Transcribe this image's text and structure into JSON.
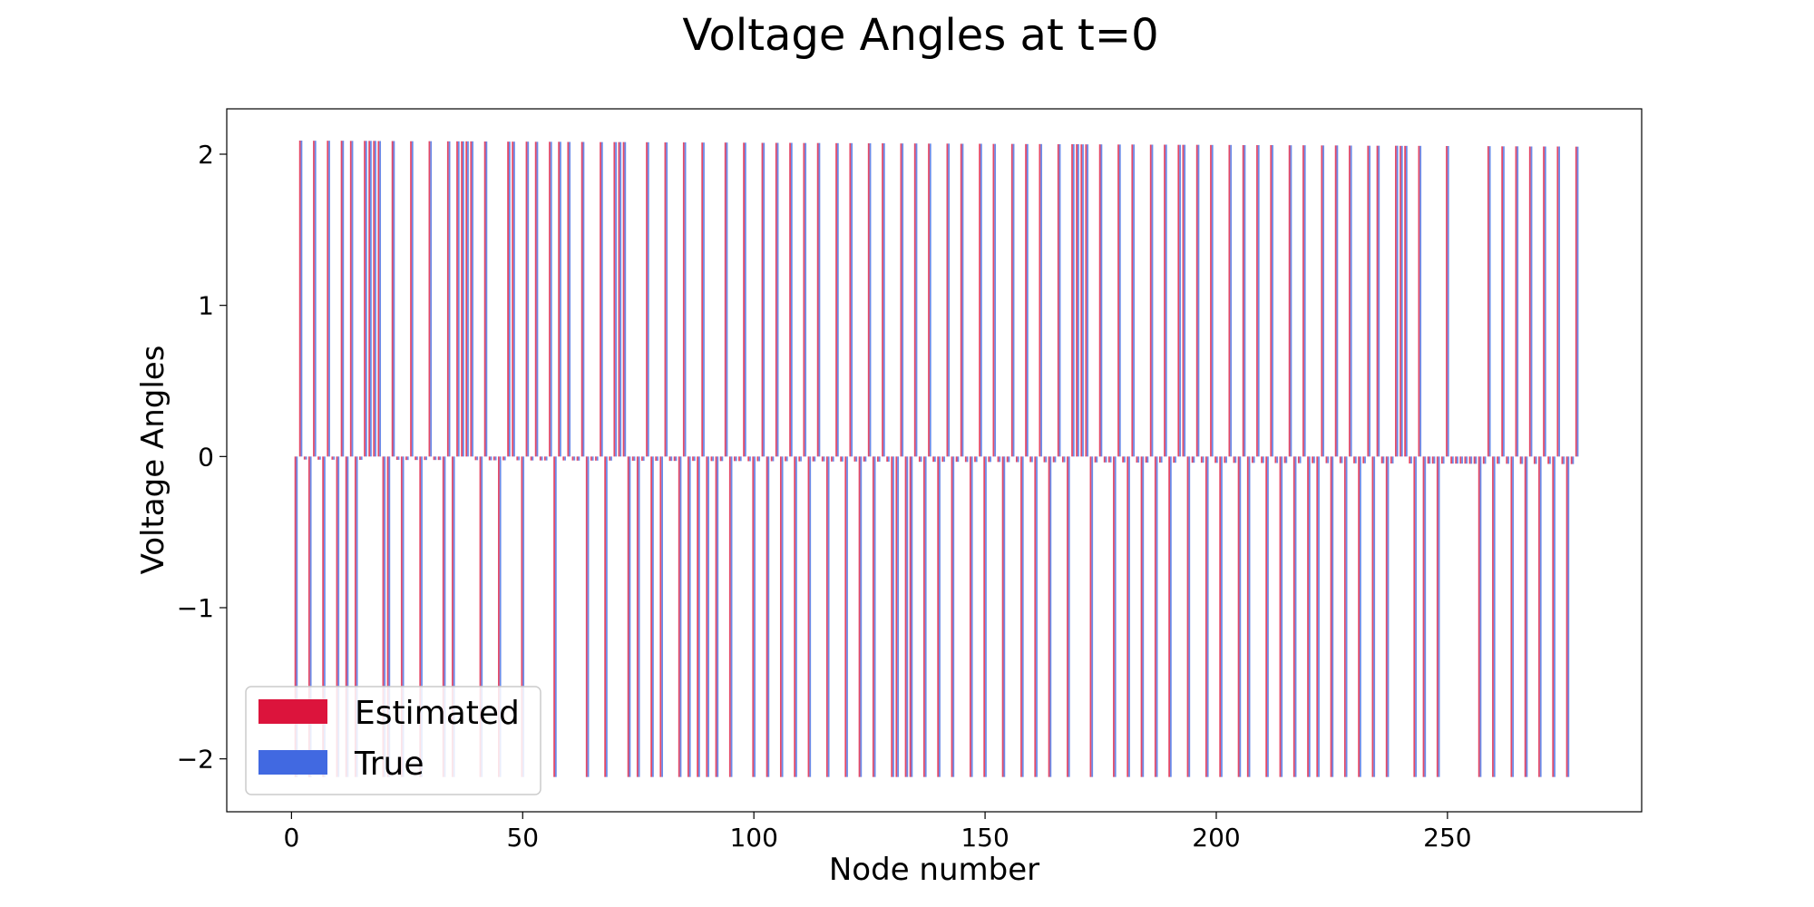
{
  "chart_data": {
    "type": "bar",
    "title": "Voltage Angles at t=0",
    "xlabel": "Node number",
    "ylabel": "Voltage Angles",
    "xlim": [
      -14,
      292
    ],
    "ylim": [
      -2.35,
      2.3
    ],
    "xticks": [
      0,
      50,
      100,
      150,
      200,
      250
    ],
    "yticks": [
      -2,
      -1,
      0,
      1,
      2
    ],
    "ytick_labels": [
      "−2",
      "−1",
      "0",
      "1",
      "2"
    ],
    "grid": false,
    "legend_position": "bottom-left",
    "series": [
      {
        "name": "Estimated",
        "color": "#dc143c"
      },
      {
        "name": "True",
        "color": "#4169e1"
      }
    ],
    "data_generation": {
      "nodes": 278,
      "pos_start": 2.09,
      "pos_end": 2.05,
      "neg_value": -2.12,
      "small_early": -0.02,
      "small_late": -0.05,
      "pos_nodes": [
        2,
        5,
        8,
        11,
        13,
        16,
        17,
        18,
        19,
        22,
        26,
        30,
        34,
        36,
        37,
        38,
        39,
        42,
        47,
        48,
        51,
        53,
        56,
        58,
        60,
        63,
        67,
        70,
        71,
        72,
        77,
        81,
        85,
        89,
        94,
        98,
        102,
        105,
        108,
        111,
        114,
        118,
        121,
        125,
        128,
        132,
        135,
        138,
        142,
        145,
        149,
        152,
        156,
        159,
        162,
        166,
        169,
        170,
        171,
        172,
        175,
        179,
        182,
        186,
        189,
        192,
        193,
        196,
        199,
        203,
        206,
        209,
        212,
        216,
        219,
        223,
        226,
        229,
        233,
        235,
        239,
        240,
        241,
        244,
        250,
        259,
        262,
        265,
        268,
        271,
        274,
        278
      ],
      "neg_nodes": [
        1,
        4,
        7,
        10,
        12,
        14,
        20,
        21,
        24,
        28,
        33,
        35,
        41,
        45,
        50,
        57,
        64,
        68,
        73,
        75,
        78,
        80,
        81,
        84,
        86,
        88,
        90,
        92,
        95,
        100,
        103,
        106,
        109,
        112,
        116,
        120,
        123,
        126,
        130,
        131,
        133,
        134,
        137,
        140,
        143,
        147,
        150,
        154,
        158,
        161,
        164,
        168,
        173,
        175,
        178,
        181,
        184,
        187,
        190,
        194,
        198,
        201,
        203,
        205,
        207,
        211,
        214,
        217,
        220,
        222,
        225,
        228,
        231,
        234,
        237,
        243,
        245,
        248,
        250,
        257,
        260,
        264,
        267,
        270,
        273,
        276
      ]
    }
  }
}
